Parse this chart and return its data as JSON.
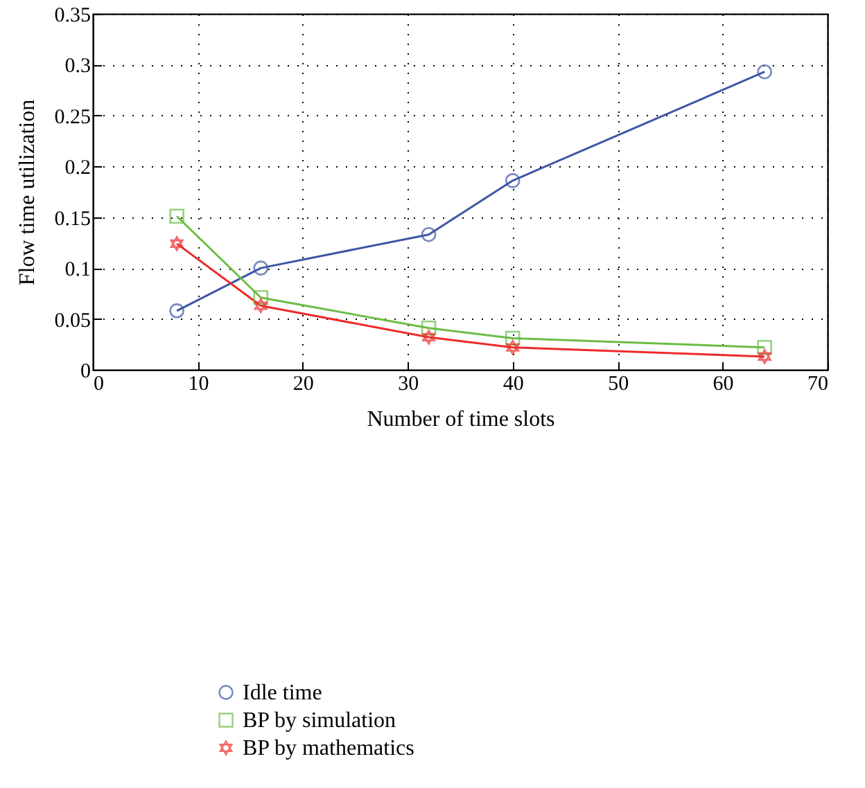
{
  "chart_data": {
    "type": "line",
    "xlabel": "Number of time slots",
    "ylabel": "Flow time utilization",
    "x": [
      8,
      16,
      32,
      40,
      64
    ],
    "series": [
      {
        "name": "Idle time",
        "color": "#3f56a6",
        "marker": "circle",
        "values": [
          0.058,
          0.1,
          0.133,
          0.186,
          0.293
        ]
      },
      {
        "name": "BP by simulation",
        "color": "#6cbd45",
        "marker": "square",
        "values": [
          0.151,
          0.071,
          0.041,
          0.031,
          0.022
        ]
      },
      {
        "name": "BP by mathematics",
        "color": "#ee2a2a",
        "marker": "star",
        "values": [
          0.124,
          0.063,
          0.032,
          0.022,
          0.013
        ]
      }
    ],
    "xlim": [
      0,
      70
    ],
    "xticks": [
      0,
      10,
      20,
      30,
      40,
      50,
      60,
      70
    ],
    "ylim": [
      0,
      0.35
    ],
    "yticks": [
      0,
      0.05,
      0.1,
      0.15,
      0.2,
      0.25,
      0.3,
      0.35
    ],
    "grid": true,
    "legend": "bottom",
    "line_style": "solid"
  }
}
